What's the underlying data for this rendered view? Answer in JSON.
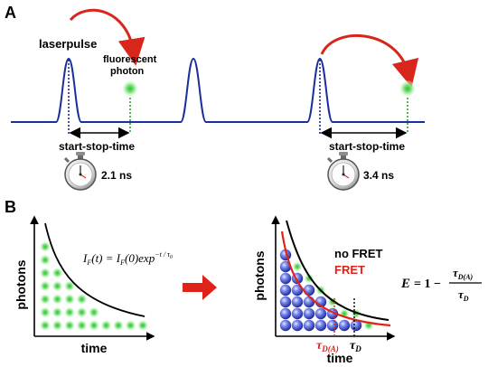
{
  "panel_a": {
    "label": "A",
    "laserpulse_label": "laserpulse",
    "fluorescent_label_line1": "fluorescent",
    "fluorescent_label_line2": "photon",
    "measurements": [
      {
        "label": "start-stop-time",
        "time": "2.1 ns"
      },
      {
        "label": "start-stop-time",
        "time": "3.4 ns"
      }
    ]
  },
  "panel_b": {
    "label": "B",
    "left_plot": {
      "ylabel": "photons",
      "xlabel": "time",
      "equation": "I_F(t) = I_F(0)exp^{-t/τ_0}"
    },
    "right_plot": {
      "ylabel": "photons",
      "xlabel": "time",
      "legend_no_fret": "no FRET",
      "legend_fret": "FRET",
      "tau_da": "τ",
      "tau_da_sub": "D(A)",
      "tau_d": "τ",
      "tau_d_sub": "D"
    },
    "efficiency": {
      "lhs": "E",
      "equals_one_minus": "= 1 −",
      "numerator": "τ",
      "numerator_sub": "D(A)",
      "denominator": "τ",
      "denominator_sub": "D"
    }
  },
  "colors": {
    "pulse_line": "#1a2f9c",
    "arrow_red": "#d9261c",
    "photon_green": "#3fd03f",
    "blue_sphere": "#3b4fcf",
    "fret_red": "#e0231a"
  },
  "icons": [
    "stopwatch-icon",
    "red-arrow-icon",
    "green-photon-icon",
    "blue-photon-icon"
  ]
}
